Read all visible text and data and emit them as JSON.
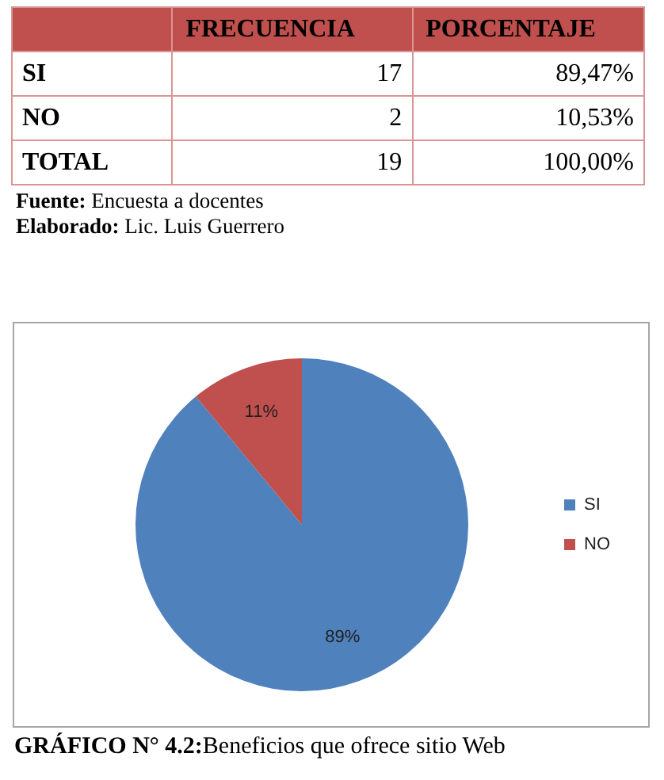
{
  "chart_data": [
    {
      "type": "other",
      "categories": [
        "SI",
        "NO",
        "TOTAL"
      ],
      "series": [
        {
          "name": "FRECUENCIA",
          "values": [
            17,
            2,
            19
          ]
        },
        {
          "name": "PORCENTAJE",
          "values": [
            89.47,
            10.53,
            100
          ],
          "value_labels": [
            "89,47%",
            "10,53%",
            "100,00%"
          ]
        }
      ],
      "data_labels": true,
      "annotations": [
        "Fuente: Encuesta a docentes",
        "Elaborado: Lic. Luis Guerrero"
      ]
    },
    {
      "type": "pie",
      "title": "GRÁFICO N° 4.2:Beneficios que ofrece sitio Web",
      "categories": [
        "SI",
        "NO"
      ],
      "values": [
        89,
        11
      ],
      "value_labels": [
        "89%",
        "11%"
      ],
      "colors": [
        "#4f81bd",
        "#c0504d"
      ],
      "legend": "right"
    }
  ]
}
